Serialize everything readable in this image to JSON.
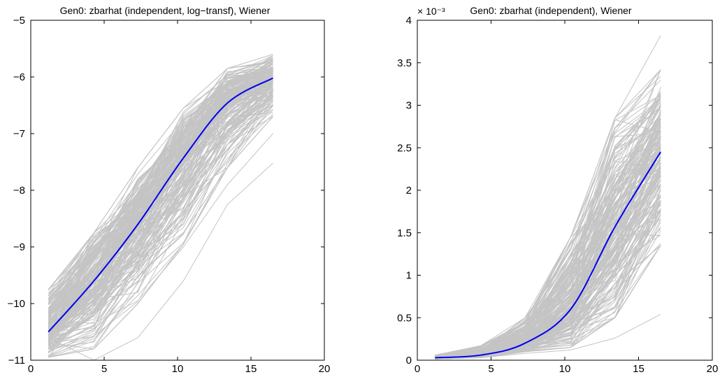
{
  "chart_data": [
    {
      "type": "line",
      "title": "Gen0: zbarhat (independent, log−transf), Wiener",
      "xlabel": "",
      "ylabel": "",
      "xlim": [
        0,
        20
      ],
      "ylim": [
        -11,
        -5
      ],
      "xticks": [
        0,
        5,
        10,
        15,
        20
      ],
      "yticks": [
        -11,
        -10,
        -9,
        -8,
        -7,
        -6,
        -5
      ],
      "xtick_labels": [
        "0",
        "5",
        "10",
        "15",
        "20"
      ],
      "ytick_labels": [
        "−11",
        "−10",
        "−9",
        "−8",
        "−7",
        "−6",
        "−5"
      ],
      "x": [
        1.2,
        4.3,
        7.3,
        10.4,
        13.4,
        16.5
      ],
      "mean_series": {
        "values": [
          -10.5,
          -9.6,
          -8.6,
          -7.43,
          -6.46,
          -6.02
        ],
        "color": "#0000ee"
      },
      "trajectory_color": "#c4c4c4",
      "trajectory_count": 200,
      "trajectory_band": {
        "min": [
          -10.95,
          -10.8,
          -10.0,
          -8.95,
          -7.6,
          -6.7
        ],
        "max": [
          -9.75,
          -8.75,
          -7.6,
          -6.55,
          -5.85,
          -5.6
        ]
      },
      "outlier_trajectories": [
        [
          -10.6,
          -11.0,
          -10.6,
          -9.6,
          -8.25,
          -7.52
        ],
        [
          -10.3,
          -10.35,
          -9.95,
          -9.0,
          -7.9,
          -7.0
        ]
      ],
      "grid": false
    },
    {
      "type": "line",
      "title": "Gen0: zbarhat (independent), Wiener",
      "exponent_label": "× 10⁻³",
      "xlabel": "",
      "ylabel": "",
      "xlim": [
        0,
        20
      ],
      "ylim": [
        0,
        4
      ],
      "xticks": [
        0,
        5,
        10,
        15,
        20
      ],
      "yticks": [
        0,
        0.5,
        1,
        1.5,
        2,
        2.5,
        3,
        3.5,
        4
      ],
      "xtick_labels": [
        "0",
        "5",
        "10",
        "15",
        "20"
      ],
      "ytick_labels": [
        "0",
        "0.5",
        "1",
        "1.5",
        "2",
        "2.5",
        "3",
        "3.5",
        "4"
      ],
      "x": [
        1.2,
        4.3,
        7.3,
        10.4,
        13.4,
        16.5
      ],
      "mean_series": {
        "values": [
          0.03,
          0.06,
          0.2,
          0.6,
          1.57,
          2.45
        ],
        "color": "#0000ee"
      },
      "trajectory_color": "#c4c4c4",
      "trajectory_count": 200,
      "trajectory_band": {
        "min": [
          0.015,
          0.03,
          0.1,
          0.15,
          0.5,
          1.35
        ],
        "max": [
          0.06,
          0.17,
          0.5,
          1.45,
          2.85,
          3.42
        ]
      },
      "outlier_trajectories": [
        [
          0.02,
          0.03,
          0.08,
          0.12,
          0.26,
          0.54
        ],
        [
          0.05,
          0.15,
          0.45,
          1.3,
          2.85,
          3.82
        ]
      ],
      "grid": false
    }
  ]
}
